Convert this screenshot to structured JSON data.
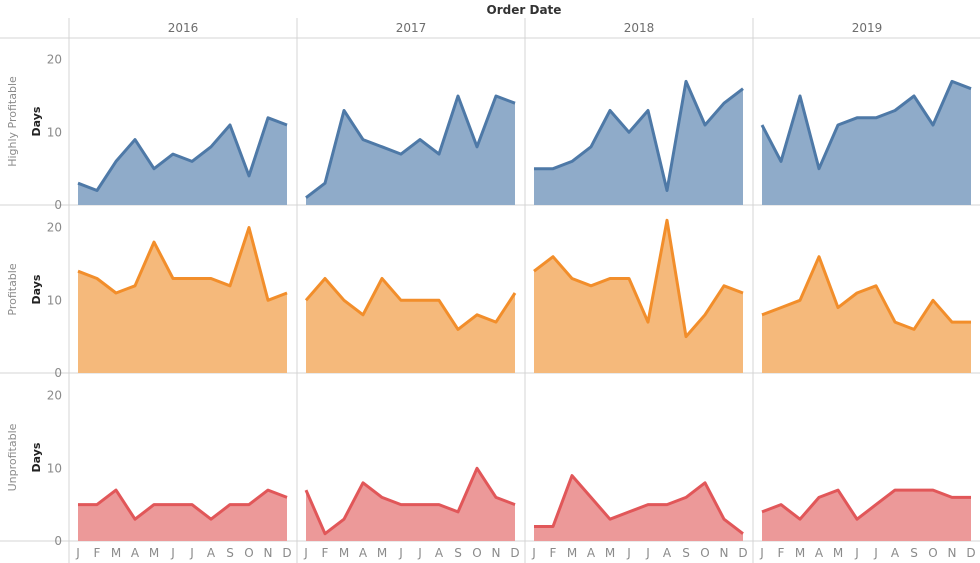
{
  "chart_data": {
    "type": "area",
    "title": "Order Date",
    "ylabel": "Days",
    "ylim": [
      0,
      23
    ],
    "yticks": [
      0,
      10,
      20
    ],
    "grid": false,
    "columns": [
      "2016",
      "2017",
      "2018",
      "2019"
    ],
    "month_labels": [
      "J",
      "F",
      "M",
      "A",
      "M",
      "J",
      "J",
      "A",
      "S",
      "O",
      "N",
      "D"
    ],
    "rows": [
      {
        "name": "Highly Profitable",
        "color": "#4e79a7",
        "fill": "#8fabc9",
        "values": {
          "2016": [
            3,
            2,
            6,
            9,
            5,
            7,
            6,
            8,
            11,
            4,
            12,
            11
          ],
          "2017": [
            1,
            3,
            13,
            9,
            8,
            7,
            9,
            7,
            15,
            8,
            15,
            14
          ],
          "2018": [
            5,
            5,
            6,
            8,
            13,
            10,
            13,
            2,
            17,
            11,
            14,
            16
          ],
          "2019": [
            11,
            6,
            15,
            5,
            11,
            12,
            12,
            13,
            15,
            11,
            17,
            16
          ]
        }
      },
      {
        "name": "Profitable",
        "color": "#f28e2b",
        "fill": "#f5b97b",
        "values": {
          "2016": [
            14,
            13,
            11,
            12,
            18,
            13,
            13,
            13,
            12,
            20,
            10,
            11
          ],
          "2017": [
            10,
            13,
            10,
            8,
            13,
            10,
            10,
            10,
            6,
            8,
            7,
            11
          ],
          "2018": [
            14,
            16,
            13,
            12,
            13,
            13,
            7,
            21,
            5,
            8,
            12,
            11
          ],
          "2019": [
            8,
            9,
            10,
            16,
            9,
            11,
            12,
            7,
            6,
            10,
            7,
            7
          ]
        }
      },
      {
        "name": "Unprofitable",
        "color": "#e15759",
        "fill": "#ec9999",
        "values": {
          "2016": [
            5,
            5,
            7,
            3,
            5,
            5,
            5,
            3,
            5,
            5,
            7,
            6
          ],
          "2017": [
            7,
            1,
            3,
            8,
            6,
            5,
            5,
            5,
            4,
            10,
            6,
            5
          ],
          "2018": [
            2,
            2,
            9,
            6,
            3,
            4,
            5,
            5,
            6,
            8,
            3,
            1
          ],
          "2019": [
            4,
            5,
            3,
            6,
            7,
            3,
            5,
            7,
            7,
            7,
            6,
            6
          ]
        }
      }
    ]
  }
}
